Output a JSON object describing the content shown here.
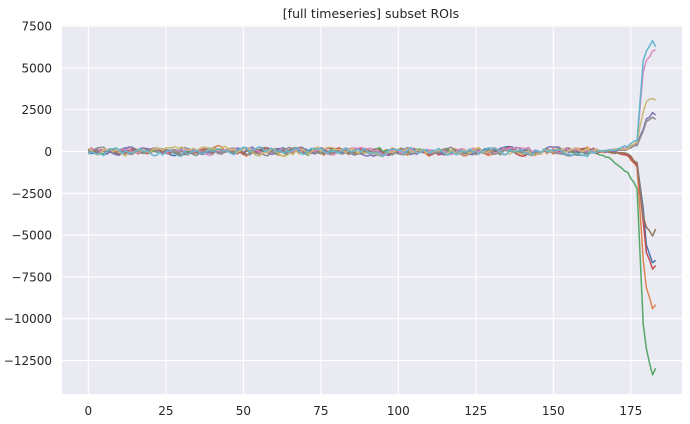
{
  "chart_data": {
    "type": "line",
    "title": "[full timeseries] subset ROIs",
    "xlabel": "",
    "ylabel": "",
    "xlim": [
      -8.5,
      191.5
    ],
    "ylim": [
      -14500,
      7500
    ],
    "xticks": [
      0,
      25,
      50,
      75,
      100,
      125,
      150,
      175
    ],
    "yticks": [
      7500,
      5000,
      2500,
      0,
      -2500,
      -5000,
      -7500,
      -10000,
      -12500
    ],
    "ytick_labels": [
      "7500",
      "5000",
      "2500",
      "0",
      "−2500",
      "−5000",
      "−7500",
      "−10000",
      "−12500"
    ],
    "grid": true,
    "background": "#eaeaf2",
    "grid_color": "#ffffff",
    "n_points": 184,
    "series": [
      {
        "color": "#4c72b0",
        "baseline_amplitude": 160,
        "tail": {
          "165": 0,
          "170": -80,
          "174": -200,
          "177": -700,
          "179": -3500,
          "180": -5600,
          "182": -6600,
          "183": -6500
        }
      },
      {
        "color": "#dd8452",
        "baseline_amplitude": 200,
        "tail": {
          "165": 0,
          "170": -60,
          "174": -250,
          "177": -900,
          "179": -6500,
          "180": -8100,
          "182": -9400,
          "183": -9200
        }
      },
      {
        "color": "#55a868",
        "baseline_amplitude": 150,
        "tail": {
          "162": 0,
          "168": -400,
          "171": -900,
          "174": -1300,
          "177": -2200,
          "179": -10400,
          "180": -11800,
          "182": -13400,
          "183": -12900
        }
      },
      {
        "color": "#c44e52",
        "baseline_amplitude": 180,
        "tail": {
          "165": 0,
          "170": -50,
          "174": -200,
          "177": -800,
          "179": -4200,
          "180": -6000,
          "182": -7000,
          "183": -6800
        }
      },
      {
        "color": "#8172b3",
        "baseline_amplitude": 170,
        "tail": {
          "165": 0,
          "170": 60,
          "174": 150,
          "177": 400,
          "179": 1400,
          "180": 1900,
          "182": 2300,
          "183": 2150
        }
      },
      {
        "color": "#937860",
        "baseline_amplitude": 160,
        "tail": {
          "165": 0,
          "170": -40,
          "174": -150,
          "177": -700,
          "179": -3900,
          "180": -4500,
          "182": -5000,
          "183": -4700
        }
      },
      {
        "color": "#da8bc3",
        "baseline_amplitude": 150,
        "tail": {
          "165": 0,
          "170": 100,
          "174": 200,
          "177": 500,
          "179": 4800,
          "180": 5400,
          "182": 6000,
          "183": 6100
        }
      },
      {
        "color": "#8c8c8c",
        "baseline_amplitude": 170,
        "tail": {
          "165": 0,
          "170": 60,
          "174": 150,
          "177": 350,
          "179": 1200,
          "180": 1800,
          "182": 2000,
          "183": 1900
        }
      },
      {
        "color": "#ccb974",
        "baseline_amplitude": 190,
        "tail": {
          "165": 0,
          "170": 80,
          "174": 200,
          "177": 600,
          "179": 2400,
          "180": 2900,
          "182": 3200,
          "183": 3000
        }
      },
      {
        "color": "#64b5cd",
        "baseline_amplitude": 200,
        "tail": {
          "165": 0,
          "170": 120,
          "174": 300,
          "177": 700,
          "179": 5400,
          "180": 6000,
          "182": 6600,
          "183": 6300
        }
      }
    ]
  }
}
